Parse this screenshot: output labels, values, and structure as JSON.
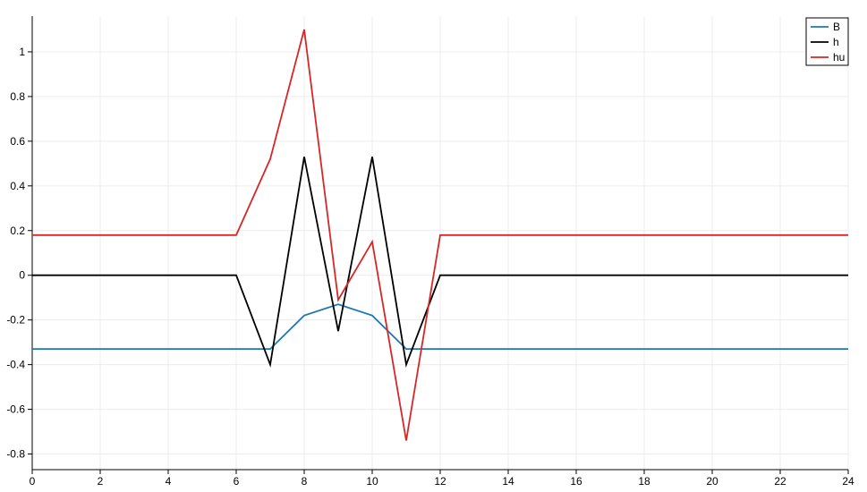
{
  "chart_data": {
    "type": "line",
    "title": "",
    "xlabel": "",
    "ylabel": "",
    "xlim": [
      0,
      24
    ],
    "ylim": [
      -0.87,
      1.16
    ],
    "xticks": [
      0,
      2,
      4,
      6,
      8,
      10,
      12,
      14,
      16,
      18,
      20,
      22,
      24
    ],
    "yticks": [
      -0.8,
      -0.6,
      -0.4,
      -0.2,
      0,
      0.2,
      0.4,
      0.6,
      0.8,
      1
    ],
    "xtick_labels": [
      "0",
      "2",
      "4",
      "6",
      "8",
      "10",
      "12",
      "14",
      "16",
      "18",
      "20",
      "22",
      "24"
    ],
    "ytick_labels": [
      "-0.8",
      "-0.6",
      "-0.4",
      "-0.2",
      "0",
      "0.2",
      "0.4",
      "0.6",
      "0.8",
      "1"
    ],
    "grid": true,
    "legend_position": "top-right",
    "x": [
      0,
      1,
      2,
      3,
      4,
      5,
      6,
      7,
      8,
      9,
      10,
      11,
      12,
      13,
      14,
      15,
      16,
      17,
      18,
      19,
      20,
      21,
      22,
      23,
      24
    ],
    "series": [
      {
        "name": "B",
        "color": "#1f77b4",
        "values": [
          -0.33,
          -0.33,
          -0.33,
          -0.33,
          -0.33,
          -0.33,
          -0.33,
          -0.33,
          -0.18,
          -0.13,
          -0.18,
          -0.33,
          -0.33,
          -0.33,
          -0.33,
          -0.33,
          -0.33,
          -0.33,
          -0.33,
          -0.33,
          -0.33,
          -0.33,
          -0.33,
          -0.33,
          -0.33
        ]
      },
      {
        "name": "h",
        "color": "#000000",
        "values": [
          0,
          0,
          0,
          0,
          0,
          0,
          0,
          -0.4,
          0.53,
          -0.25,
          0.53,
          -0.4,
          0,
          0,
          0,
          0,
          0,
          0,
          0,
          0,
          0,
          0,
          0,
          0,
          0
        ]
      },
      {
        "name": "hu",
        "color": "#d62728",
        "values": [
          0.18,
          0.18,
          0.18,
          0.18,
          0.18,
          0.18,
          0.18,
          0.52,
          1.1,
          -0.11,
          0.15,
          -0.74,
          0.18,
          0.18,
          0.18,
          0.18,
          0.18,
          0.18,
          0.18,
          0.18,
          0.18,
          0.18,
          0.18,
          0.18,
          0.18
        ]
      }
    ]
  }
}
